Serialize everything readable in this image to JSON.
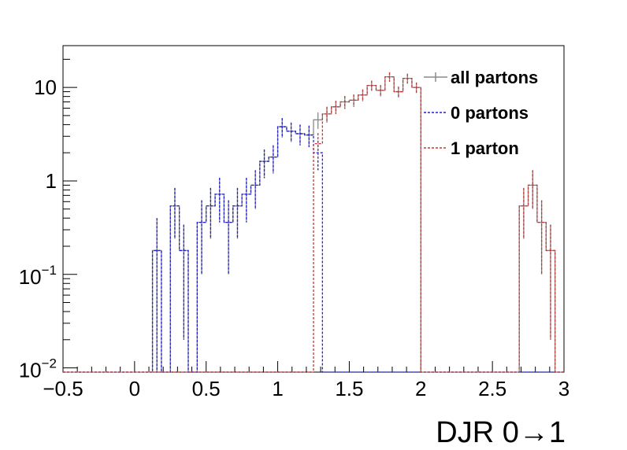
{
  "chart_data": {
    "type": "histogram",
    "xlabel": "DJR 0→1",
    "ylabel": "",
    "xlim": [
      -0.5,
      3.0
    ],
    "ylim": [
      0.009,
      28
    ],
    "yscale": "log",
    "grid": false,
    "legend_position": "top-right",
    "bin_width": 0.0625,
    "x_ticks": [
      -0.5,
      0,
      0.5,
      1,
      1.5,
      2,
      2.5,
      3
    ],
    "x_tick_labels": [
      "−0.5",
      "0",
      "0.5",
      "1",
      "1.5",
      "2",
      "2.5",
      "3"
    ],
    "y_ticks": [
      {
        "value": 0.01,
        "base": "10",
        "exp": "−2"
      },
      {
        "value": 0.1,
        "base": "10",
        "exp": "−1"
      },
      {
        "value": 1,
        "label": "1"
      },
      {
        "value": 10,
        "label": "10"
      }
    ],
    "legend": [
      "all partons",
      "0 partons",
      "1 parton"
    ],
    "series": [
      {
        "name": "all partons",
        "color": "#8a8a8a",
        "dash": "",
        "bins": [
          {
            "x": 0.125,
            "y": 0.18,
            "err": 0.22
          },
          {
            "x": 0.25,
            "y": 0.54,
            "err": 0.3
          },
          {
            "x": 0.3125,
            "y": 0.18,
            "err": 0.16
          },
          {
            "x": 0.4375,
            "y": 0.36,
            "err": 0.26
          },
          {
            "x": 0.5,
            "y": 0.54,
            "err": 0.3
          },
          {
            "x": 0.5625,
            "y": 0.72,
            "err": 0.36
          },
          {
            "x": 0.625,
            "y": 0.36,
            "err": 0.26
          },
          {
            "x": 0.6875,
            "y": 0.54,
            "err": 0.3
          },
          {
            "x": 0.75,
            "y": 0.72,
            "err": 0.36
          },
          {
            "x": 0.8125,
            "y": 0.9,
            "err": 0.4
          },
          {
            "x": 0.875,
            "y": 1.62,
            "err": 0.55
          },
          {
            "x": 0.9375,
            "y": 1.8,
            "err": 0.6
          },
          {
            "x": 1.0,
            "y": 3.8,
            "err": 0.9
          },
          {
            "x": 1.0625,
            "y": 3.4,
            "err": 0.8
          },
          {
            "x": 1.125,
            "y": 3.2,
            "err": 0.8
          },
          {
            "x": 1.1875,
            "y": 3.1,
            "err": 0.8
          },
          {
            "x": 1.25,
            "y": 4.5,
            "err": 0.9
          },
          {
            "x": 1.3125,
            "y": 5.2,
            "err": 1.0
          },
          {
            "x": 1.375,
            "y": 6.2,
            "err": 1.0
          },
          {
            "x": 1.4375,
            "y": 7.0,
            "err": 1.1
          },
          {
            "x": 1.5,
            "y": 7.3,
            "err": 1.1
          },
          {
            "x": 1.5625,
            "y": 8.3,
            "err": 1.2
          },
          {
            "x": 1.625,
            "y": 10.5,
            "err": 1.3
          },
          {
            "x": 1.6875,
            "y": 9.3,
            "err": 1.3
          },
          {
            "x": 1.75,
            "y": 13.0,
            "err": 1.5
          },
          {
            "x": 1.8125,
            "y": 9.0,
            "err": 1.2
          },
          {
            "x": 1.875,
            "y": 12.5,
            "err": 1.5
          },
          {
            "x": 1.9375,
            "y": 10.0,
            "err": 1.3
          },
          {
            "x": 2.6875,
            "y": 0.54,
            "err": 0.3
          },
          {
            "x": 2.75,
            "y": 0.9,
            "err": 0.4
          },
          {
            "x": 2.8125,
            "y": 0.36,
            "err": 0.26
          },
          {
            "x": 2.875,
            "y": 0.18,
            "err": 0.16
          }
        ]
      },
      {
        "name": "0 partons",
        "color": "#1f1fd8",
        "dash": "3,2",
        "bins": [
          {
            "x": 0.125,
            "y": 0.18,
            "err": 0.22
          },
          {
            "x": 0.25,
            "y": 0.54,
            "err": 0.3
          },
          {
            "x": 0.3125,
            "y": 0.18,
            "err": 0.16
          },
          {
            "x": 0.4375,
            "y": 0.36,
            "err": 0.26
          },
          {
            "x": 0.5,
            "y": 0.54,
            "err": 0.3
          },
          {
            "x": 0.5625,
            "y": 0.72,
            "err": 0.36
          },
          {
            "x": 0.625,
            "y": 0.36,
            "err": 0.26
          },
          {
            "x": 0.6875,
            "y": 0.54,
            "err": 0.3
          },
          {
            "x": 0.75,
            "y": 0.72,
            "err": 0.36
          },
          {
            "x": 0.8125,
            "y": 0.9,
            "err": 0.4
          },
          {
            "x": 0.875,
            "y": 1.62,
            "err": 0.55
          },
          {
            "x": 0.9375,
            "y": 1.8,
            "err": 0.6
          },
          {
            "x": 1.0,
            "y": 3.8,
            "err": 0.9
          },
          {
            "x": 1.0625,
            "y": 3.4,
            "err": 0.8
          },
          {
            "x": 1.125,
            "y": 3.2,
            "err": 0.8
          },
          {
            "x": 1.1875,
            "y": 3.1,
            "err": 0.8
          },
          {
            "x": 1.25,
            "y": 2.0,
            "err": 0.7
          }
        ]
      },
      {
        "name": "1 parton",
        "color": "#c03838",
        "dash": "3,2",
        "bins": [
          {
            "x": 1.25,
            "y": 2.5,
            "err": 0.75
          },
          {
            "x": 1.3125,
            "y": 5.2,
            "err": 1.0
          },
          {
            "x": 1.375,
            "y": 6.2,
            "err": 1.0
          },
          {
            "x": 1.4375,
            "y": 7.0,
            "err": 1.1
          },
          {
            "x": 1.5,
            "y": 7.3,
            "err": 1.1
          },
          {
            "x": 1.5625,
            "y": 8.3,
            "err": 1.2
          },
          {
            "x": 1.625,
            "y": 10.5,
            "err": 1.3
          },
          {
            "x": 1.6875,
            "y": 9.3,
            "err": 1.3
          },
          {
            "x": 1.75,
            "y": 13.0,
            "err": 1.5
          },
          {
            "x": 1.8125,
            "y": 9.0,
            "err": 1.2
          },
          {
            "x": 1.875,
            "y": 12.5,
            "err": 1.5
          },
          {
            "x": 1.9375,
            "y": 10.0,
            "err": 1.3
          },
          {
            "x": 2.6875,
            "y": 0.54,
            "err": 0.3
          },
          {
            "x": 2.75,
            "y": 0.9,
            "err": 0.4
          },
          {
            "x": 2.8125,
            "y": 0.36,
            "err": 0.26
          },
          {
            "x": 2.875,
            "y": 0.18,
            "err": 0.16
          }
        ]
      }
    ]
  }
}
